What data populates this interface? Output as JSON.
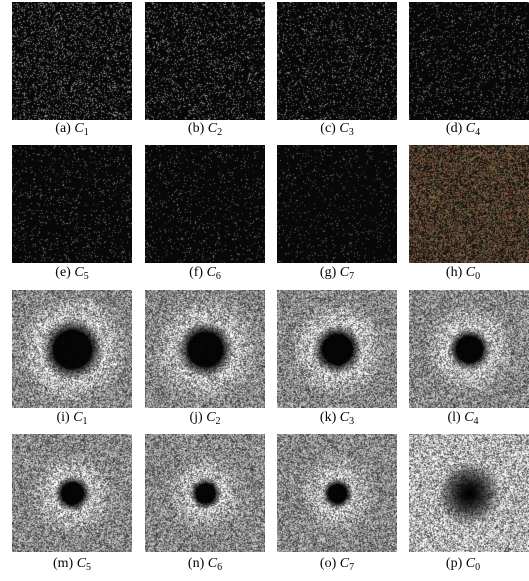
{
  "figure": {
    "panels": [
      {
        "label": "(a)",
        "symbol": "C",
        "subscript": "1",
        "kind": "points",
        "density": 0.16,
        "tint": [
          150,
          150,
          150
        ]
      },
      {
        "label": "(b)",
        "symbol": "C",
        "subscript": "2",
        "kind": "points",
        "density": 0.13,
        "tint": [
          145,
          145,
          145
        ]
      },
      {
        "label": "(c)",
        "symbol": "C",
        "subscript": "3",
        "kind": "points",
        "density": 0.11,
        "tint": [
          140,
          140,
          140
        ]
      },
      {
        "label": "(d)",
        "symbol": "C",
        "subscript": "4",
        "kind": "points",
        "density": 0.09,
        "tint": [
          135,
          135,
          135
        ]
      },
      {
        "label": "(e)",
        "symbol": "C",
        "subscript": "5",
        "kind": "points",
        "density": 0.07,
        "tint": [
          125,
          125,
          125
        ]
      },
      {
        "label": "(f)",
        "symbol": "C",
        "subscript": "6",
        "kind": "points",
        "density": 0.06,
        "tint": [
          120,
          120,
          120
        ]
      },
      {
        "label": "(g)",
        "symbol": "C",
        "subscript": "7",
        "kind": "points",
        "density": 0.05,
        "tint": [
          115,
          115,
          115
        ]
      },
      {
        "label": "(h)",
        "symbol": "C",
        "subscript": "0",
        "kind": "points-color",
        "density": 0.5,
        "tint": [
          120,
          95,
          70
        ]
      },
      {
        "label": "(i)",
        "symbol": "C",
        "subscript": "1",
        "kind": "spectrum",
        "hole": 0.33,
        "ring": 0.55
      },
      {
        "label": "(j)",
        "symbol": "C",
        "subscript": "2",
        "kind": "spectrum",
        "hole": 0.3,
        "ring": 0.5
      },
      {
        "label": "(k)",
        "symbol": "C",
        "subscript": "3",
        "kind": "spectrum",
        "hole": 0.26,
        "ring": 0.44
      },
      {
        "label": "(l)",
        "symbol": "C",
        "subscript": "4",
        "kind": "spectrum",
        "hole": 0.23,
        "ring": 0.38
      },
      {
        "label": "(m)",
        "symbol": "C",
        "subscript": "5",
        "kind": "spectrum",
        "hole": 0.19,
        "ring": 0.32
      },
      {
        "label": "(n)",
        "symbol": "C",
        "subscript": "6",
        "kind": "spectrum",
        "hole": 0.17,
        "ring": 0.28
      },
      {
        "label": "(o)",
        "symbol": "C",
        "subscript": "7",
        "kind": "spectrum",
        "hole": 0.16,
        "ring": 0.27
      },
      {
        "label": "(p)",
        "symbol": "C",
        "subscript": "0",
        "kind": "spectrum-soft",
        "hole": 0.3,
        "ring": 0.0
      }
    ]
  }
}
